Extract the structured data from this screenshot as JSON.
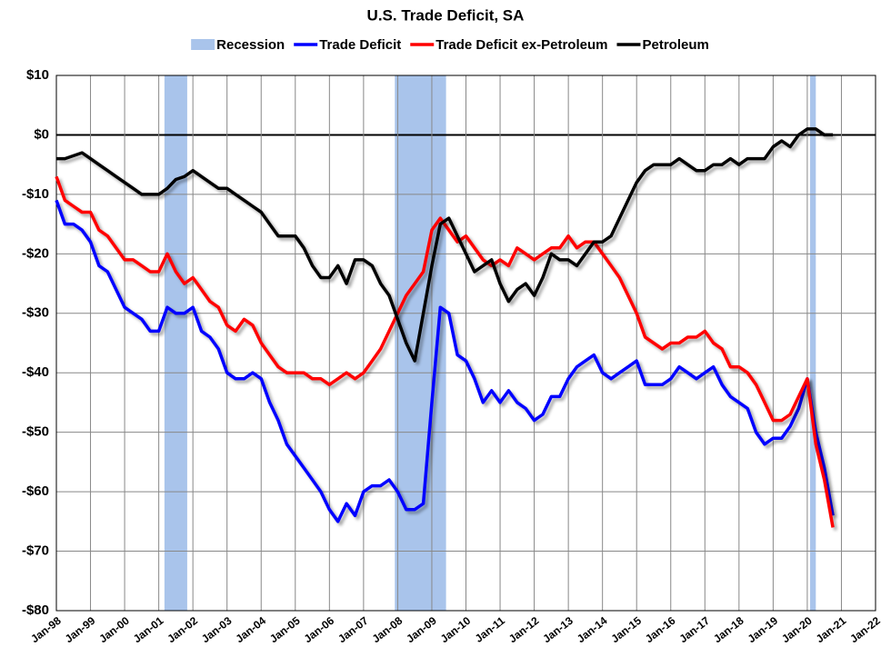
{
  "chart_data": {
    "type": "line",
    "title": "U.S. Trade Deficit, SA",
    "recessions": {
      "name": "Recession",
      "color": "#a9c4eb",
      "periods": [
        {
          "start": "Mar-01",
          "end": "Nov-01"
        },
        {
          "start": "Dec-07",
          "end": "Jun-09"
        },
        {
          "start": "Feb-20",
          "end": "Apr-20"
        }
      ]
    },
    "x": [
      "Jan-98",
      "Apr-98",
      "Jul-98",
      "Oct-98",
      "Jan-99",
      "Apr-99",
      "Jul-99",
      "Oct-99",
      "Jan-00",
      "Apr-00",
      "Jul-00",
      "Oct-00",
      "Jan-01",
      "Apr-01",
      "Jul-01",
      "Oct-01",
      "Jan-02",
      "Apr-02",
      "Jul-02",
      "Oct-02",
      "Jan-03",
      "Apr-03",
      "Jul-03",
      "Oct-03",
      "Jan-04",
      "Apr-04",
      "Jul-04",
      "Oct-04",
      "Jan-05",
      "Apr-05",
      "Jul-05",
      "Oct-05",
      "Jan-06",
      "Apr-06",
      "Jul-06",
      "Oct-06",
      "Jan-07",
      "Apr-07",
      "Jul-07",
      "Oct-07",
      "Jan-08",
      "Apr-08",
      "Jul-08",
      "Oct-08",
      "Jan-09",
      "Apr-09",
      "Jul-09",
      "Oct-09",
      "Jan-10",
      "Apr-10",
      "Jul-10",
      "Oct-10",
      "Jan-11",
      "Apr-11",
      "Jul-11",
      "Oct-11",
      "Jan-12",
      "Apr-12",
      "Jul-12",
      "Oct-12",
      "Jan-13",
      "Apr-13",
      "Jul-13",
      "Oct-13",
      "Jan-14",
      "Apr-14",
      "Jul-14",
      "Oct-14",
      "Jan-15",
      "Apr-15",
      "Jul-15",
      "Oct-15",
      "Jan-16",
      "Apr-16",
      "Jul-16",
      "Oct-16",
      "Jan-17",
      "Apr-17",
      "Jul-17",
      "Oct-17",
      "Jan-18",
      "Apr-18",
      "Jul-18",
      "Oct-18",
      "Jan-19",
      "Apr-19",
      "Jul-19",
      "Oct-19",
      "Jan-20",
      "Apr-20",
      "Jul-20",
      "Oct-20"
    ],
    "series": [
      {
        "name": "Trade Deficit",
        "color": "#0000ff",
        "values": [
          -11,
          -15,
          -15,
          -16,
          -18,
          -22,
          -23,
          -26,
          -29,
          -30,
          -31,
          -33,
          -33,
          -29,
          -30,
          -30,
          -29,
          -33,
          -34,
          -36,
          -40,
          -41,
          -41,
          -40,
          -41,
          -45,
          -48,
          -52,
          -54,
          -56,
          -58,
          -60,
          -63,
          -65,
          -62,
          -64,
          -60,
          -59,
          -59,
          -58,
          -60,
          -63,
          -63,
          -62,
          -45,
          -29,
          -30,
          -37,
          -38,
          -41,
          -45,
          -43,
          -45,
          -43,
          -45,
          -46,
          -48,
          -47,
          -44,
          -44,
          -41,
          -39,
          -38,
          -37,
          -40,
          -41,
          -40,
          -39,
          -38,
          -42,
          -42,
          -42,
          -41,
          -39,
          -40,
          -41,
          -40,
          -39,
          -42,
          -44,
          -45,
          -46,
          -50,
          -52,
          -51,
          -51,
          -49,
          -46,
          -41,
          -50,
          -56,
          -64
        ]
      },
      {
        "name": "Trade Deficit ex-Petroleum",
        "color": "#ff0000",
        "values": [
          -7,
          -11,
          -12,
          -13,
          -13,
          -16,
          -17,
          -19,
          -21,
          -21,
          -22,
          -23,
          -23,
          -20,
          -23,
          -25,
          -24,
          -26,
          -28,
          -29,
          -32,
          -33,
          -31,
          -32,
          -35,
          -37,
          -39,
          -40,
          -40,
          -40,
          -41,
          -41,
          -42,
          -41,
          -40,
          -41,
          -40,
          -38,
          -36,
          -33,
          -30,
          -27,
          -25,
          -23,
          -16,
          -14,
          -16,
          -18,
          -17,
          -19,
          -21,
          -22,
          -21,
          -22,
          -19,
          -20,
          -21,
          -20,
          -19,
          -19,
          -17,
          -19,
          -18,
          -18,
          -20,
          -22,
          -24,
          -27,
          -30,
          -34,
          -35,
          -36,
          -35,
          -35,
          -34,
          -34,
          -33,
          -35,
          -36,
          -39,
          -39,
          -40,
          -42,
          -45,
          -48,
          -48,
          -47,
          -44,
          -41,
          -52,
          -58,
          -66
        ]
      },
      {
        "name": "Petroleum",
        "color": "#000000",
        "values": [
          -4,
          -4,
          -3.5,
          -3,
          -4,
          -5,
          -6,
          -7,
          -8,
          -9,
          -10,
          -10,
          -10,
          -9,
          -7.5,
          -7,
          -6,
          -7,
          -8,
          -9,
          -9,
          -10,
          -11,
          -12,
          -13,
          -15,
          -17,
          -17,
          -17,
          -19,
          -22,
          -24,
          -24,
          -22,
          -25,
          -21,
          -21,
          -22,
          -25,
          -27,
          -31,
          -35,
          -38,
          -30,
          -22,
          -15,
          -14,
          -17,
          -20,
          -23,
          -22,
          -21,
          -25,
          -28,
          -26,
          -25,
          -27,
          -24,
          -20,
          -21,
          -21,
          -22,
          -20,
          -18,
          -18,
          -17,
          -14,
          -11,
          -8,
          -6,
          -5,
          -5,
          -5,
          -4,
          -5,
          -6,
          -6,
          -5,
          -5,
          -4,
          -5,
          -4,
          -4,
          -4,
          -2,
          -1,
          -2,
          0,
          1,
          1,
          0,
          0
        ]
      }
    ],
    "xlim": [
      "Jan-98",
      "Jan-22"
    ],
    "xticks": [
      "Jan-98",
      "Jan-99",
      "Jan-00",
      "Jan-01",
      "Jan-02",
      "Jan-03",
      "Jan-04",
      "Jan-05",
      "Jan-06",
      "Jan-07",
      "Jan-08",
      "Jan-09",
      "Jan-10",
      "Jan-11",
      "Jan-12",
      "Jan-13",
      "Jan-14",
      "Jan-15",
      "Jan-16",
      "Jan-17",
      "Jan-18",
      "Jan-19",
      "Jan-20",
      "Jan-21",
      "Jan-22"
    ],
    "ylim": [
      -80,
      10
    ],
    "yticks": [
      {
        "value": -80,
        "label": "-$80"
      },
      {
        "value": -70,
        "label": "-$70"
      },
      {
        "value": -60,
        "label": "-$60"
      },
      {
        "value": -50,
        "label": "-$50"
      },
      {
        "value": -40,
        "label": "-$40"
      },
      {
        "value": -30,
        "label": "-$30"
      },
      {
        "value": -20,
        "label": "-$20"
      },
      {
        "value": -10,
        "label": "-$10"
      },
      {
        "value": 0,
        "label": "$0"
      },
      {
        "value": 10,
        "label": "$10"
      }
    ],
    "grid": true
  }
}
